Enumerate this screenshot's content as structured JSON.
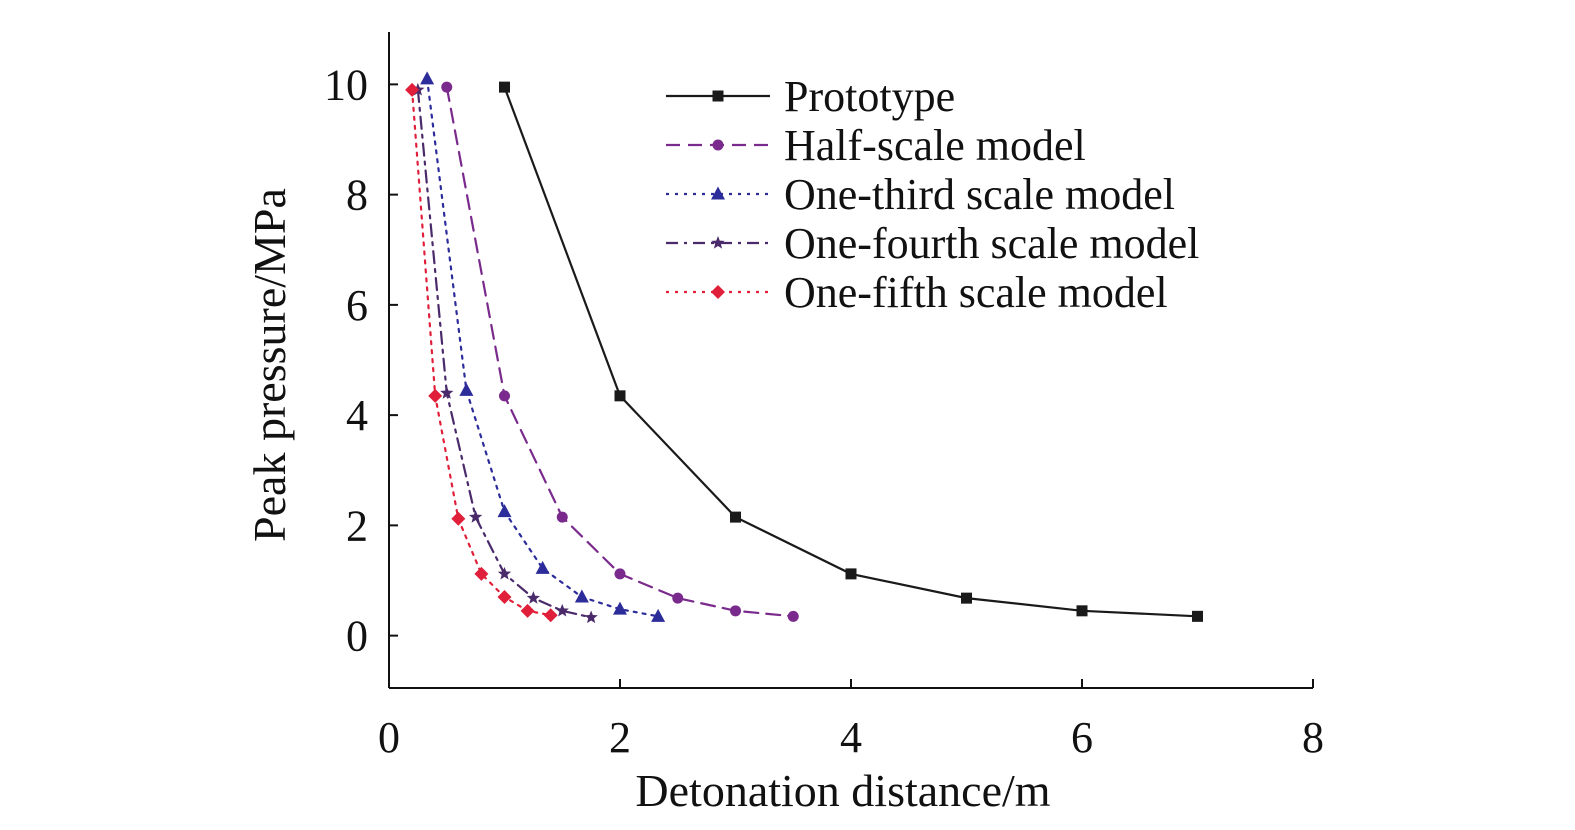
{
  "chart_data": {
    "type": "line",
    "xlabel": "Detonation distance/m",
    "ylabel": "Peak pressure/MPa",
    "xlim": [
      0,
      8
    ],
    "ylim": [
      -0.95,
      10.95
    ],
    "xticks": [
      0,
      2,
      4,
      6,
      8
    ],
    "yticks": [
      0,
      2,
      4,
      6,
      8,
      10
    ],
    "xtick_labels": [
      "0",
      "2",
      "4",
      "6",
      "8"
    ],
    "ytick_labels": [
      "0",
      "2",
      "4",
      "6",
      "8",
      "10"
    ],
    "grid": false,
    "legend_position": "top-right",
    "series": [
      {
        "name": "Prototype",
        "color": "#1a1a1a",
        "marker": "square",
        "line_style": "solid",
        "x": [
          1.0,
          2.0,
          3.0,
          4.0,
          5.0,
          6.0,
          7.0
        ],
        "y": [
          9.95,
          4.35,
          2.15,
          1.12,
          0.68,
          0.45,
          0.35
        ]
      },
      {
        "name": "Half-scale model",
        "color": "#7a2a8c",
        "marker": "circle",
        "line_style": "dashed",
        "x": [
          0.5,
          1.0,
          1.5,
          2.0,
          2.5,
          3.0,
          3.5
        ],
        "y": [
          9.95,
          4.35,
          2.15,
          1.12,
          0.68,
          0.45,
          0.35
        ]
      },
      {
        "name": "One-third scale model",
        "color": "#2c2c9a",
        "marker": "triangle",
        "line_style": "dotted",
        "x": [
          0.33,
          0.67,
          1.0,
          1.33,
          1.67,
          2.0,
          2.33
        ],
        "y": [
          10.1,
          4.45,
          2.25,
          1.22,
          0.7,
          0.48,
          0.35
        ]
      },
      {
        "name": "One-fourth scale model",
        "color": "#4a2a6a",
        "marker": "star",
        "line_style": "dashdot",
        "x": [
          0.25,
          0.5,
          0.75,
          1.0,
          1.25,
          1.5,
          1.75
        ],
        "y": [
          9.9,
          4.4,
          2.15,
          1.12,
          0.68,
          0.45,
          0.33
        ]
      },
      {
        "name": "One-fifth scale model",
        "color": "#e0203a",
        "marker": "diamond",
        "line_style": "dotted",
        "x": [
          0.2,
          0.4,
          0.6,
          0.8,
          1.0,
          1.2,
          1.4
        ],
        "y": [
          9.9,
          4.35,
          2.12,
          1.12,
          0.7,
          0.45,
          0.37
        ]
      }
    ]
  }
}
